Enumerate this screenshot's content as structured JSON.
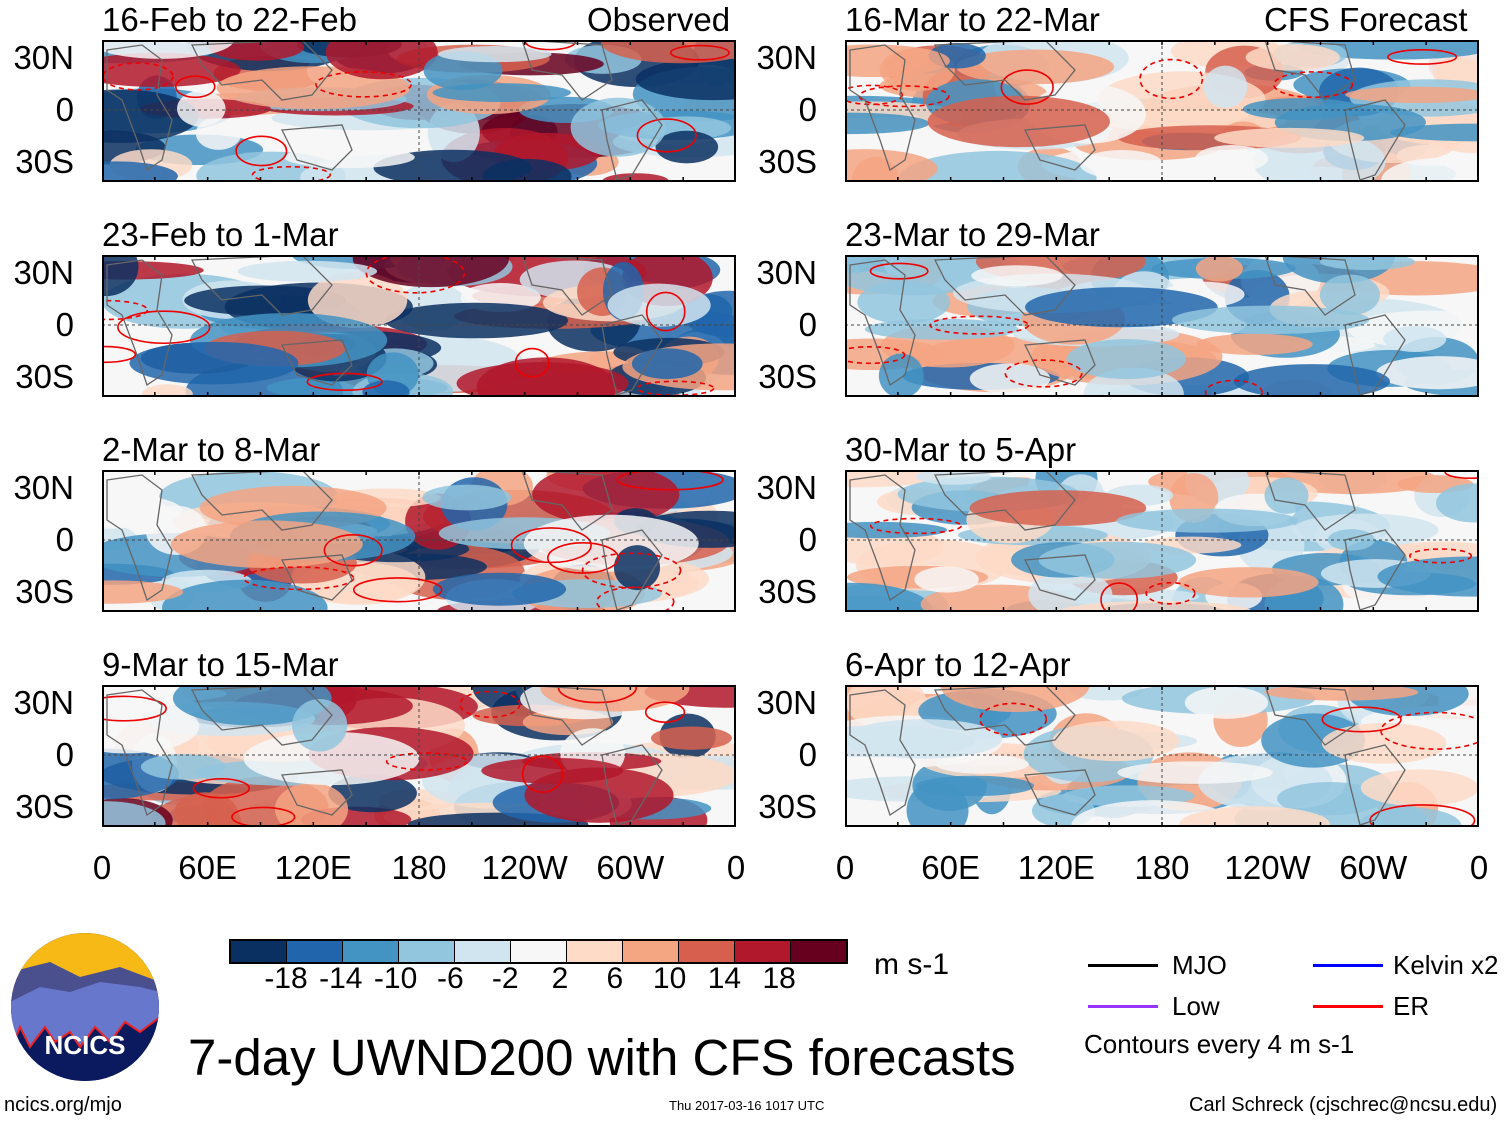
{
  "header": {
    "left_label": "Observed",
    "right_label": "CFS Forecast"
  },
  "panels_observed": [
    {
      "title": "16-Feb to 22-Feb"
    },
    {
      "title": "23-Feb to 1-Mar"
    },
    {
      "title": "2-Mar to 8-Mar"
    },
    {
      "title": "9-Mar to 15-Mar"
    }
  ],
  "panels_forecast": [
    {
      "title": "16-Mar to 22-Mar"
    },
    {
      "title": "23-Mar to 29-Mar"
    },
    {
      "title": "30-Mar to 5-Apr"
    },
    {
      "title": "6-Apr to 12-Apr"
    }
  ],
  "lat_labels": [
    "30N",
    "0",
    "30S"
  ],
  "lon_labels": [
    "0",
    "60E",
    "120E",
    "180",
    "120W",
    "60W",
    "0"
  ],
  "colorbar": {
    "units": "m s-1",
    "tick_labels": [
      "-18",
      "-14",
      "-10",
      "-6",
      "-2",
      "2",
      "6",
      "10",
      "14",
      "18"
    ],
    "colors": [
      "#0a3062",
      "#2166ac",
      "#4393c3",
      "#92c5de",
      "#d1e5f0",
      "#f7f7f7",
      "#fddbc7",
      "#f4a582",
      "#d6604d",
      "#b2182b",
      "#67001f"
    ]
  },
  "legend": {
    "items": [
      {
        "label": "MJO",
        "color": "#000000"
      },
      {
        "label": "Kelvin x2",
        "color": "#0000ff"
      },
      {
        "label": "Low",
        "color": "#9933ff"
      },
      {
        "label": "ER",
        "color": "#ff0000"
      }
    ],
    "note": "Contours every 4 m s-1"
  },
  "title": "7-day UWND200 with CFS forecasts",
  "logo_text": "NCICS",
  "footer": {
    "url": "ncics.org/mjo",
    "timestamp": "Thu 2017-03-16 1017 UTC",
    "author": "Carl Schreck (cjschrec@ncsu.edu)"
  }
}
